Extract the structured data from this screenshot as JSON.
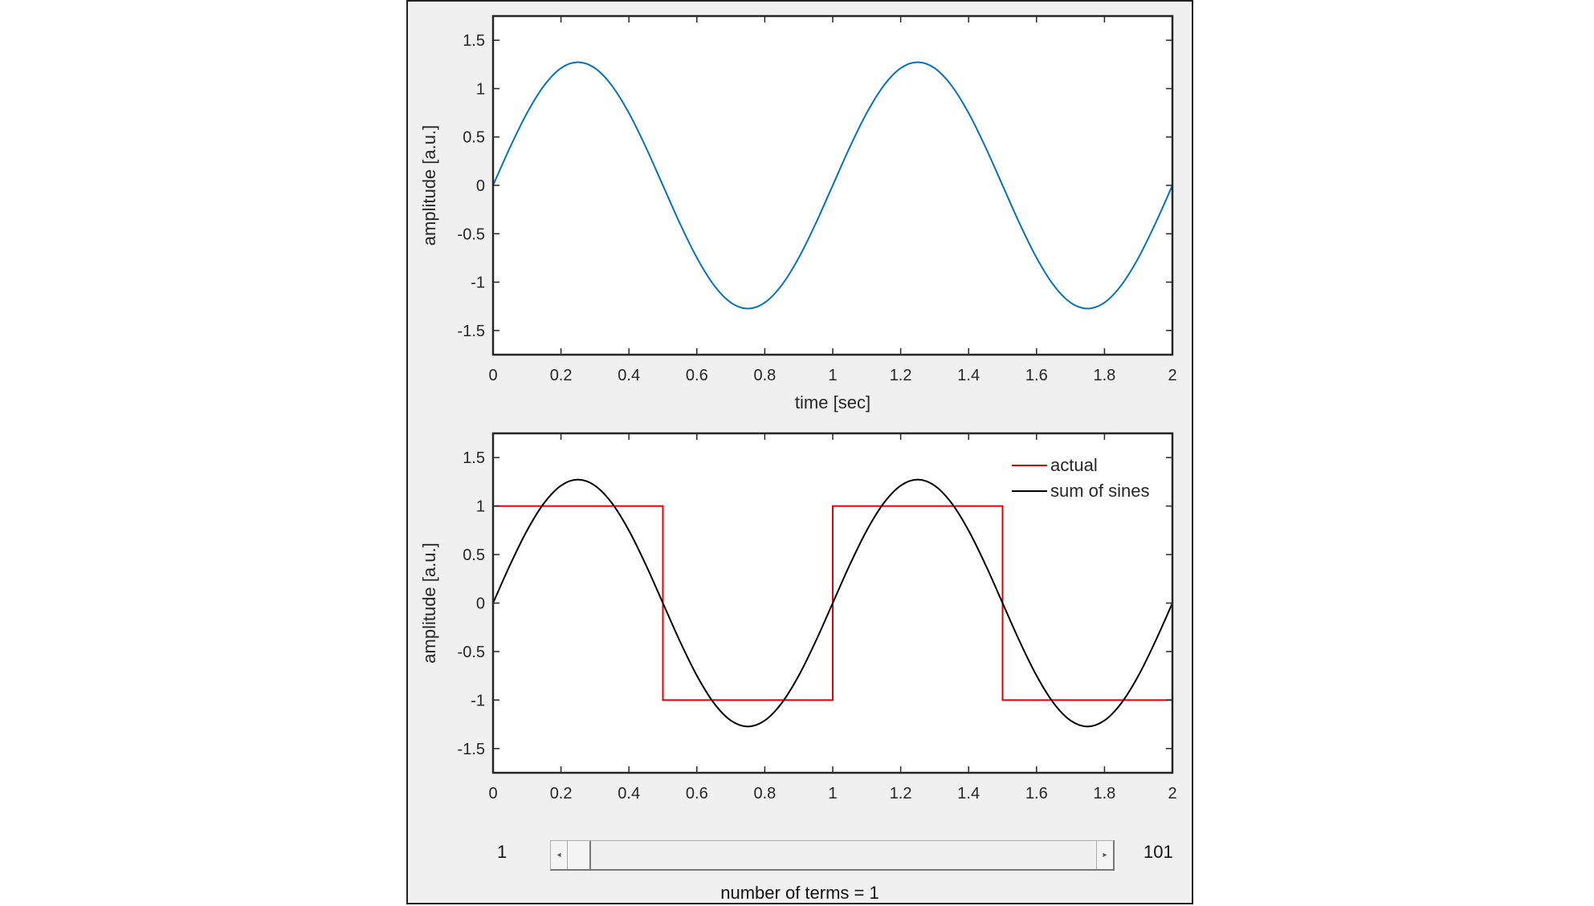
{
  "chart_data": [
    {
      "type": "line",
      "xlabel": "time [sec]",
      "ylabel": "amplitude [a.u.]",
      "xlim": [
        0,
        2
      ],
      "ylim": [
        -1.75,
        1.75
      ],
      "xticks": [
        "0",
        "0.2",
        "0.4",
        "0.6",
        "0.8",
        "1",
        "1.2",
        "1.4",
        "1.6",
        "1.8",
        "2"
      ],
      "yticks": [
        "-1.5",
        "-1",
        "-0.5",
        "0",
        "0.5",
        "1",
        "1.5"
      ],
      "grid": false,
      "series": [
        {
          "color": "#0072bd",
          "x": [
            0,
            0.05,
            0.1,
            0.15,
            0.2,
            0.25,
            0.3,
            0.35,
            0.4,
            0.45,
            0.5,
            0.55,
            0.6,
            0.65,
            0.7,
            0.75,
            0.8,
            0.85,
            0.9,
            0.95,
            1,
            1.05,
            1.1,
            1.15,
            1.2,
            1.25,
            1.3,
            1.35,
            1.4,
            1.45,
            1.5,
            1.55,
            1.6,
            1.65,
            1.7,
            1.75,
            1.8,
            1.85,
            1.9,
            1.95,
            2
          ],
          "y": [
            0,
            0.393,
            0.748,
            1.03,
            1.211,
            1.273,
            1.211,
            1.03,
            0.748,
            0.393,
            0,
            -0.393,
            -0.748,
            -1.03,
            -1.211,
            -1.273,
            -1.211,
            -1.03,
            -0.748,
            -0.393,
            0,
            0.393,
            0.748,
            1.03,
            1.211,
            1.273,
            1.211,
            1.03,
            0.748,
            0.393,
            0,
            -0.393,
            -0.748,
            -1.03,
            -1.211,
            -1.273,
            -1.211,
            -1.03,
            -0.748,
            -0.393,
            0
          ]
        }
      ]
    },
    {
      "type": "line",
      "xlabel": "time [sec]",
      "ylabel": "amplitude [a.u.]",
      "xlim": [
        0,
        2
      ],
      "ylim": [
        -1.75,
        1.75
      ],
      "xticks": [
        "0",
        "0.2",
        "0.4",
        "0.6",
        "0.8",
        "1",
        "1.2",
        "1.4",
        "1.6",
        "1.8",
        "2"
      ],
      "yticks": [
        "-1.5",
        "-1",
        "-0.5",
        "0",
        "0.5",
        "1",
        "1.5"
      ],
      "grid": false,
      "legend": "top-right",
      "series": [
        {
          "name": "actual",
          "color": "#e60000",
          "step": true,
          "x": [
            0,
            0.5,
            0.5,
            1,
            1,
            1.5,
            1.5,
            2
          ],
          "y": [
            1,
            1,
            -1,
            -1,
            1,
            1,
            -1,
            -1
          ]
        },
        {
          "name": "sum of sines",
          "color": "#000000",
          "x": [
            0,
            0.05,
            0.1,
            0.15,
            0.2,
            0.25,
            0.3,
            0.35,
            0.4,
            0.45,
            0.5,
            0.55,
            0.6,
            0.65,
            0.7,
            0.75,
            0.8,
            0.85,
            0.9,
            0.95,
            1,
            1.05,
            1.1,
            1.15,
            1.2,
            1.25,
            1.3,
            1.35,
            1.4,
            1.45,
            1.5,
            1.55,
            1.6,
            1.65,
            1.7,
            1.75,
            1.8,
            1.85,
            1.9,
            1.95,
            2
          ],
          "y": [
            0,
            0.393,
            0.748,
            1.03,
            1.211,
            1.273,
            1.211,
            1.03,
            0.748,
            0.393,
            0,
            -0.393,
            -0.748,
            -1.03,
            -1.211,
            -1.273,
            -1.211,
            -1.03,
            -0.748,
            -0.393,
            0,
            0.393,
            0.748,
            1.03,
            1.211,
            1.273,
            1.211,
            1.03,
            0.748,
            0.393,
            0,
            -0.393,
            -0.748,
            -1.03,
            -1.211,
            -1.273,
            -1.211,
            -1.03,
            -0.748,
            -0.393,
            0
          ]
        }
      ]
    }
  ],
  "slider": {
    "min_label": "1",
    "max_label": "101",
    "min": 1,
    "max": 101,
    "value": 1,
    "caption": "number of terms = 1"
  }
}
